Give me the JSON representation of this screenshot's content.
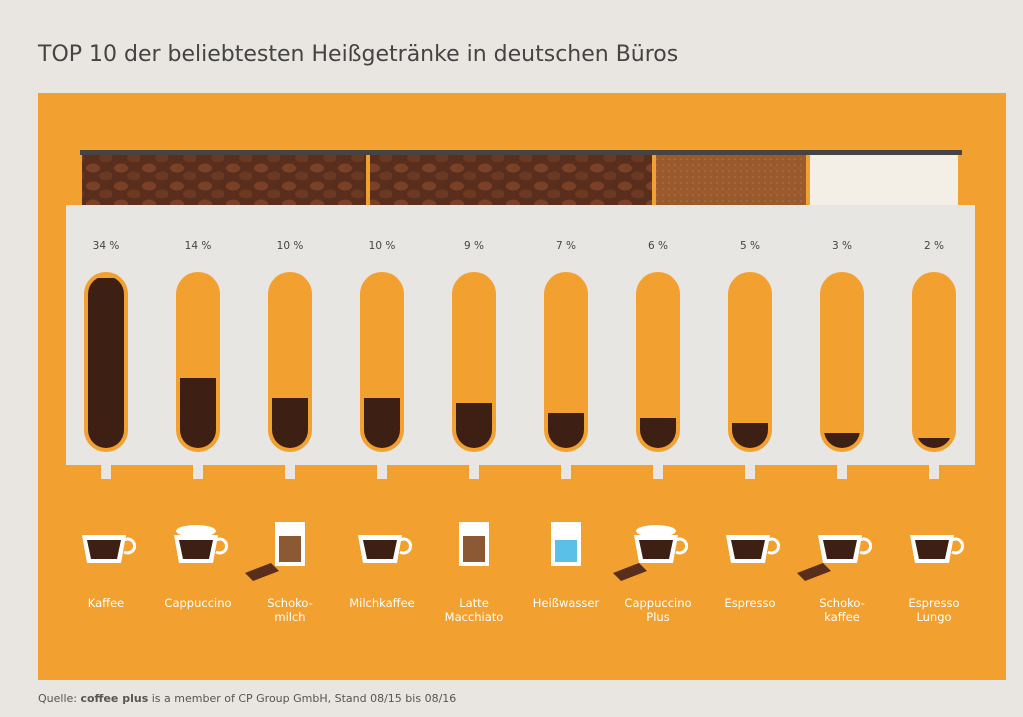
{
  "chart_data": {
    "type": "tube",
    "title": "TOP 10 der beliebtesten Heißgetränke in deutschen Büros",
    "categories": [
      "Kaffee",
      "Cappuccino",
      "Schoko-\nmilch",
      "Milchkaffee",
      "Latte\nMacchiato",
      "Heißwasser",
      "Cappuccino\nPlus",
      "Espresso",
      "Schoko-\nkaffee",
      "Espresso\nLungo"
    ],
    "values": [
      34,
      14,
      10,
      10,
      9,
      7,
      6,
      5,
      3,
      2
    ],
    "value_labels": [
      "34 %",
      "14 %",
      "10 %",
      "10 %",
      "9 %",
      "7 %",
      "6 %",
      "5 %",
      "3 %",
      "2 %"
    ],
    "color": "#3d1f14",
    "source": {
      "prefix": "Quelle:",
      "brand": "coffee plus",
      "text": "is a member of CP Group GmbH, Stand 08/15 bis 08/16"
    }
  }
}
